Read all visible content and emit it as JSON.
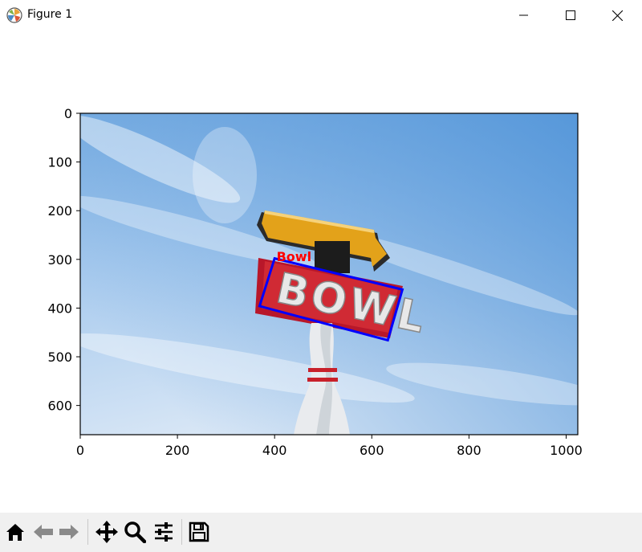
{
  "window": {
    "title": "Figure 1",
    "icon": "matplotlib-icon",
    "controls": [
      "minimize-icon",
      "maximize-icon",
      "close-icon"
    ]
  },
  "image": {
    "description": "Photo of a bowling alley sign against a blue sky",
    "sign_text": "BOWL",
    "colors": {
      "sky_top": "#5a9bdb",
      "sky_bottom": "#dce9f5",
      "sign_red": "#c8202a",
      "arrow_yellow": "#e3a21a"
    }
  },
  "chart_data": {
    "type": "image",
    "xlim": [
      0,
      1024
    ],
    "ylim": [
      660,
      0
    ],
    "xticks": [
      0,
      200,
      400,
      600,
      800,
      1000
    ],
    "yticks": [
      0,
      100,
      200,
      300,
      400,
      500,
      600
    ],
    "annotations": [
      {
        "label": "Bowl",
        "label_color": "#ff0000",
        "label_xy": [
          404,
          284
        ],
        "box_color": "#0000ff",
        "polygon": [
          [
            400,
            298
          ],
          [
            663,
            362
          ],
          [
            633,
            466
          ],
          [
            369,
            396
          ]
        ]
      }
    ]
  },
  "toolbar": {
    "buttons": [
      {
        "name": "home-icon",
        "tooltip": "Reset original view"
      },
      {
        "name": "back-icon",
        "tooltip": "Back"
      },
      {
        "name": "forward-icon",
        "tooltip": "Forward"
      },
      {
        "name": "pan-icon",
        "tooltip": "Pan"
      },
      {
        "name": "zoom-icon",
        "tooltip": "Zoom"
      },
      {
        "name": "configure-subplots-icon",
        "tooltip": "Configure subplots"
      },
      {
        "name": "save-icon",
        "tooltip": "Save the figure"
      }
    ]
  }
}
